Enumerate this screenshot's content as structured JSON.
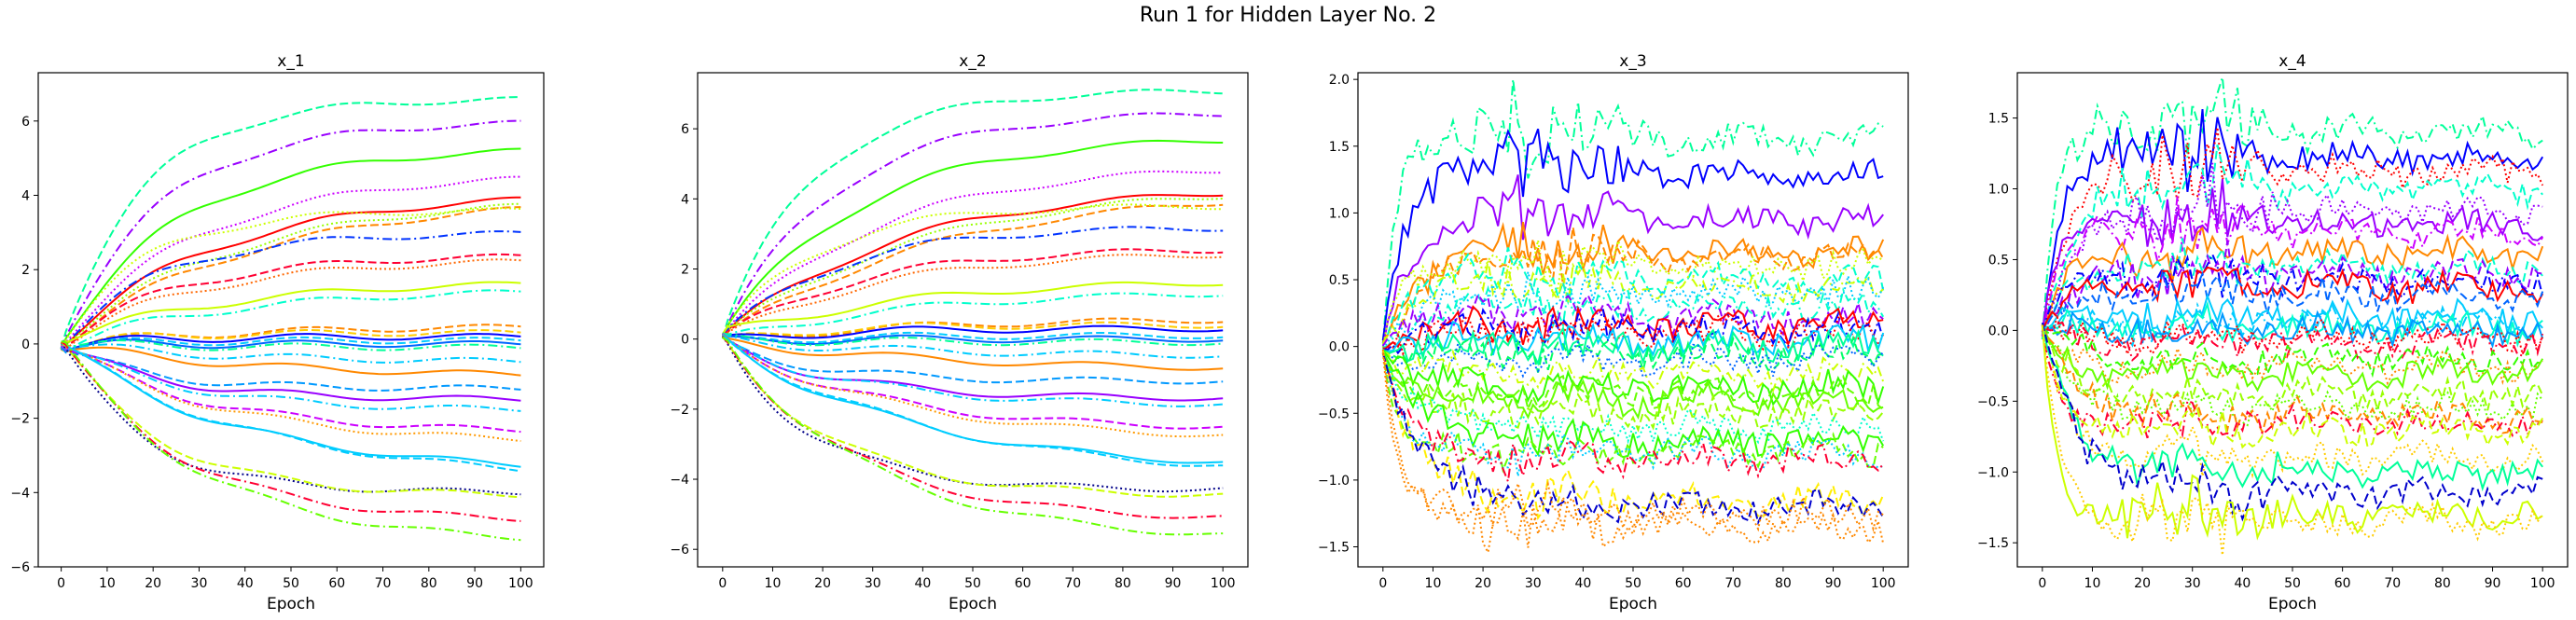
{
  "figure": {
    "title": "Run 1 for Hidden Layer No. 2"
  },
  "chart_data": [
    {
      "type": "line",
      "title": "x_1",
      "xlabel": "Epoch",
      "ylabel": "",
      "xlim": [
        -5,
        105
      ],
      "ylim": [
        -6,
        7.3
      ],
      "xticks": [
        0,
        10,
        20,
        30,
        40,
        50,
        60,
        70,
        80,
        90,
        100
      ],
      "yticks": [
        -6,
        -4,
        -2,
        0,
        2,
        4,
        6
      ],
      "grid": false,
      "series_count": 32,
      "final_values": [
        6.6,
        6.0,
        5.3,
        4.6,
        4.1,
        4.0,
        4.0,
        3.6,
        3.0,
        2.4,
        2.3,
        1.7,
        1.5,
        0.5,
        0.3,
        0.2,
        0.1,
        0.0,
        -0.1,
        -0.5,
        -0.9,
        -1.2,
        -1.5,
        -1.8,
        -2.4,
        -2.7,
        -3.5,
        -3.7,
        -4.0,
        -4.1,
        -4.8,
        -5.4
      ],
      "ranks": [
        0.8,
        0.68,
        0.75,
        0.62,
        0.55,
        0.6,
        0.45,
        0.7,
        0.5,
        0.4,
        0.35,
        0.9,
        0.3,
        0.25,
        0.2,
        0.3,
        0.22,
        0.25,
        0.45,
        0.35,
        0.2,
        0.15,
        0.3,
        0.35,
        0.4,
        0.45,
        0.55,
        0.5,
        0.6,
        0.65,
        0.7,
        0.85
      ],
      "styles": [
        "dashed",
        "dashdot",
        "solid",
        "dotted",
        "solid",
        "dotted",
        "dashed",
        "dotted",
        "dashdot",
        "dashed",
        "dotted",
        "solid",
        "dashdot",
        "dashed",
        "dashed",
        "solid",
        "dashed",
        "solid",
        "dashdot",
        "dashdot",
        "solid",
        "dashed",
        "solid",
        "dashdot",
        "dashed",
        "dotted",
        "solid",
        "dashed",
        "dotted",
        "dashed",
        "dashdot",
        "dashdot"
      ],
      "colors": [
        "#00ff99",
        "#9900ff",
        "#33ff00",
        "#cc00ff",
        "#ff0000",
        "#99ff00",
        "#ff8800",
        "#ccff00",
        "#0033ff",
        "#ff0033",
        "#ff6600",
        "#ccff00",
        "#00ffcc",
        "#ff8800",
        "#ffcc00",
        "#0000ff",
        "#00ccff",
        "#0066ff",
        "#00ff99",
        "#00ccff",
        "#ff8800",
        "#0099ff",
        "#9900ff",
        "#00ccff",
        "#cc00ff",
        "#ff9900",
        "#00ccff",
        "#00ccff",
        "#000088",
        "#ccff00",
        "#ff0033",
        "#66ff00"
      ]
    },
    {
      "type": "line",
      "title": "x_2",
      "xlabel": "Epoch",
      "ylabel": "",
      "xlim": [
        -5,
        105
      ],
      "ylim": [
        -6.5,
        7.6
      ],
      "xticks": [
        0,
        10,
        20,
        30,
        40,
        50,
        60,
        70,
        80,
        90,
        100
      ],
      "yticks": [
        -6,
        -4,
        -2,
        0,
        2,
        4,
        6
      ],
      "grid": false,
      "series_count": 32,
      "final_values": [
        7.1,
        6.5,
        5.8,
        5.0,
        4.4,
        4.4,
        4.3,
        3.8,
        3.2,
        2.6,
        2.5,
        1.7,
        1.4,
        0.6,
        0.4,
        0.3,
        0.1,
        0.0,
        -0.1,
        -0.5,
        -0.9,
        -1.2,
        -1.7,
        -1.9,
        -2.6,
        -2.9,
        -3.8,
        -4.0,
        -4.3,
        -4.5,
        -5.2,
        -5.8
      ],
      "ranks": [
        0.8,
        0.68,
        0.75,
        0.62,
        0.55,
        0.6,
        0.45,
        0.7,
        0.5,
        0.4,
        0.35,
        0.9,
        0.3,
        0.25,
        0.2,
        0.3,
        0.22,
        0.25,
        0.45,
        0.35,
        0.2,
        0.15,
        0.3,
        0.35,
        0.4,
        0.45,
        0.55,
        0.5,
        0.6,
        0.65,
        0.7,
        0.85
      ],
      "styles": [
        "dashed",
        "dashdot",
        "solid",
        "dotted",
        "solid",
        "dotted",
        "dashed",
        "dotted",
        "dashdot",
        "dashed",
        "dotted",
        "solid",
        "dashdot",
        "dashed",
        "dashed",
        "solid",
        "dashed",
        "solid",
        "dashdot",
        "dashdot",
        "solid",
        "dashed",
        "solid",
        "dashdot",
        "dashed",
        "dotted",
        "solid",
        "dashed",
        "dotted",
        "dashed",
        "dashdot",
        "dashdot"
      ],
      "colors": [
        "#00ff99",
        "#9900ff",
        "#33ff00",
        "#cc00ff",
        "#ff0000",
        "#99ff00",
        "#ff8800",
        "#ccff00",
        "#0033ff",
        "#ff0033",
        "#ff6600",
        "#ccff00",
        "#00ffcc",
        "#ff8800",
        "#ffcc00",
        "#0000ff",
        "#00ccff",
        "#0066ff",
        "#00ff99",
        "#00ccff",
        "#ff8800",
        "#0099ff",
        "#9900ff",
        "#00ccff",
        "#cc00ff",
        "#ff9900",
        "#00ccff",
        "#00ccff",
        "#000088",
        "#ccff00",
        "#ff0033",
        "#66ff00"
      ]
    },
    {
      "type": "line",
      "title": "x_3",
      "xlabel": "Epoch",
      "ylabel": "",
      "xlim": [
        -5,
        105
      ],
      "ylim": [
        -1.65,
        2.05
      ],
      "xticks": [
        0,
        10,
        20,
        30,
        40,
        50,
        60,
        70,
        80,
        90,
        100
      ],
      "yticks": [
        -1.5,
        -1.0,
        -0.5,
        0.0,
        0.5,
        1.0,
        1.5,
        2.0
      ],
      "grid": false,
      "series_count": 32,
      "final_values": [
        1.55,
        1.3,
        0.95,
        0.7,
        0.68,
        0.6,
        0.5,
        0.45,
        0.4,
        0.3,
        0.22,
        0.15,
        0.12,
        0.1,
        0.05,
        0.0,
        -0.05,
        -0.1,
        -0.2,
        -0.3,
        -0.35,
        -0.4,
        -0.5,
        -0.6,
        -0.7,
        -0.78,
        -0.8,
        -0.85,
        -1.15,
        -1.2,
        -1.25,
        -1.35
      ],
      "ranks": [
        1.0,
        0.9,
        1.0,
        1.0,
        0.9,
        0.9,
        0.8,
        0.9,
        0.9,
        0.9,
        0.8,
        0.9,
        1.0,
        0.9,
        0.8,
        0.9,
        0.7,
        0.9,
        0.8,
        0.8,
        0.9,
        1.0,
        0.8,
        0.8,
        0.9,
        1.0,
        0.9,
        0.7,
        0.9,
        0.9,
        1.0,
        1.0
      ],
      "styles": [
        "dashdot",
        "solid",
        "solid",
        "solid",
        "dashed",
        "dotted",
        "dashed",
        "dashdot",
        "dotted",
        "dashdot",
        "dashed",
        "solid",
        "dashdot",
        "dotted",
        "solid",
        "solid",
        "dashed",
        "dotted",
        "dashdot",
        "solid",
        "dashed",
        "solid",
        "dashed",
        "dotted",
        "solid",
        "dashed",
        "dotted",
        "dashdot",
        "dashed",
        "dashed",
        "dotted",
        "dotted"
      ],
      "colors": [
        "#00ff99",
        "#0000ff",
        "#9900ff",
        "#ff8800",
        "#ff8800",
        "#ccff00",
        "#00ffcc",
        "#ccff00",
        "#00ccff",
        "#00ffcc",
        "#9900ff",
        "#ff0000",
        "#0000ff",
        "#ff0000",
        "#00ccff",
        "#00ff99",
        "#00ff66",
        "#0066ff",
        "#ccff00",
        "#33ff00",
        "#66ff00",
        "#66ff00",
        "#99ff00",
        "#00ffcc",
        "#33ff00",
        "#66ff00",
        "#00ccff",
        "#ff0033",
        "#ffee00",
        "#0000cc",
        "#ff8800",
        "#ff8800"
      ]
    },
    {
      "type": "line",
      "title": "x_4",
      "xlabel": "Epoch",
      "ylabel": "",
      "xlim": [
        -5,
        105
      ],
      "ylim": [
        -1.67,
        1.82
      ],
      "xticks": [
        0,
        10,
        20,
        30,
        40,
        50,
        60,
        70,
        80,
        90,
        100
      ],
      "yticks": [
        -1.5,
        -1.0,
        -0.5,
        0.0,
        0.5,
        1.0,
        1.5
      ],
      "grid": false,
      "series_count": 32,
      "final_values": [
        1.4,
        1.22,
        1.13,
        1.0,
        0.85,
        0.75,
        0.68,
        0.55,
        0.45,
        0.4,
        0.35,
        0.3,
        0.25,
        0.1,
        0.05,
        0.02,
        0.0,
        -0.05,
        -0.1,
        -0.2,
        -0.25,
        -0.3,
        -0.45,
        -0.55,
        -0.6,
        -0.65,
        -0.7,
        -0.9,
        -1.0,
        -1.15,
        -1.3,
        -1.35
      ],
      "ranks": [
        1.0,
        0.9,
        0.9,
        0.9,
        0.9,
        0.9,
        0.8,
        1.0,
        0.8,
        0.8,
        0.8,
        1.0,
        0.9,
        0.8,
        0.9,
        0.8,
        0.9,
        0.8,
        0.8,
        0.9,
        0.8,
        0.9,
        0.8,
        0.9,
        0.8,
        0.8,
        0.9,
        0.8,
        0.9,
        0.9,
        1.0,
        1.0
      ],
      "styles": [
        "dashdot",
        "solid",
        "dotted",
        "dashed",
        "dotted",
        "solid",
        "dashdot",
        "solid",
        "dashed",
        "dashed",
        "dashdot",
        "solid",
        "dashed",
        "solid",
        "dashdot",
        "solid",
        "solid",
        "dotted",
        "dashdot",
        "dashed",
        "dotted",
        "solid",
        "dashed",
        "dotted",
        "dashed",
        "dashdot",
        "dashed",
        "dotted",
        "solid",
        "dashed",
        "solid",
        "dotted"
      ],
      "colors": [
        "#00ff99",
        "#0000ff",
        "#ff0000",
        "#00ffcc",
        "#9900ff",
        "#9900ff",
        "#cc00ff",
        "#ff8800",
        "#00ffcc",
        "#9900ff",
        "#0000ff",
        "#ff0000",
        "#0066ff",
        "#00ccff",
        "#00ccff",
        "#00ffcc",
        "#0099ff",
        "#ff0000",
        "#ff0033",
        "#33ff00",
        "#ff8800",
        "#66ff00",
        "#99ff00",
        "#66ff00",
        "#ff8800",
        "#ff0033",
        "#ccff00",
        "#ffcc00",
        "#00ff99",
        "#0000cc",
        "#ccff00",
        "#ffcc00"
      ]
    }
  ]
}
